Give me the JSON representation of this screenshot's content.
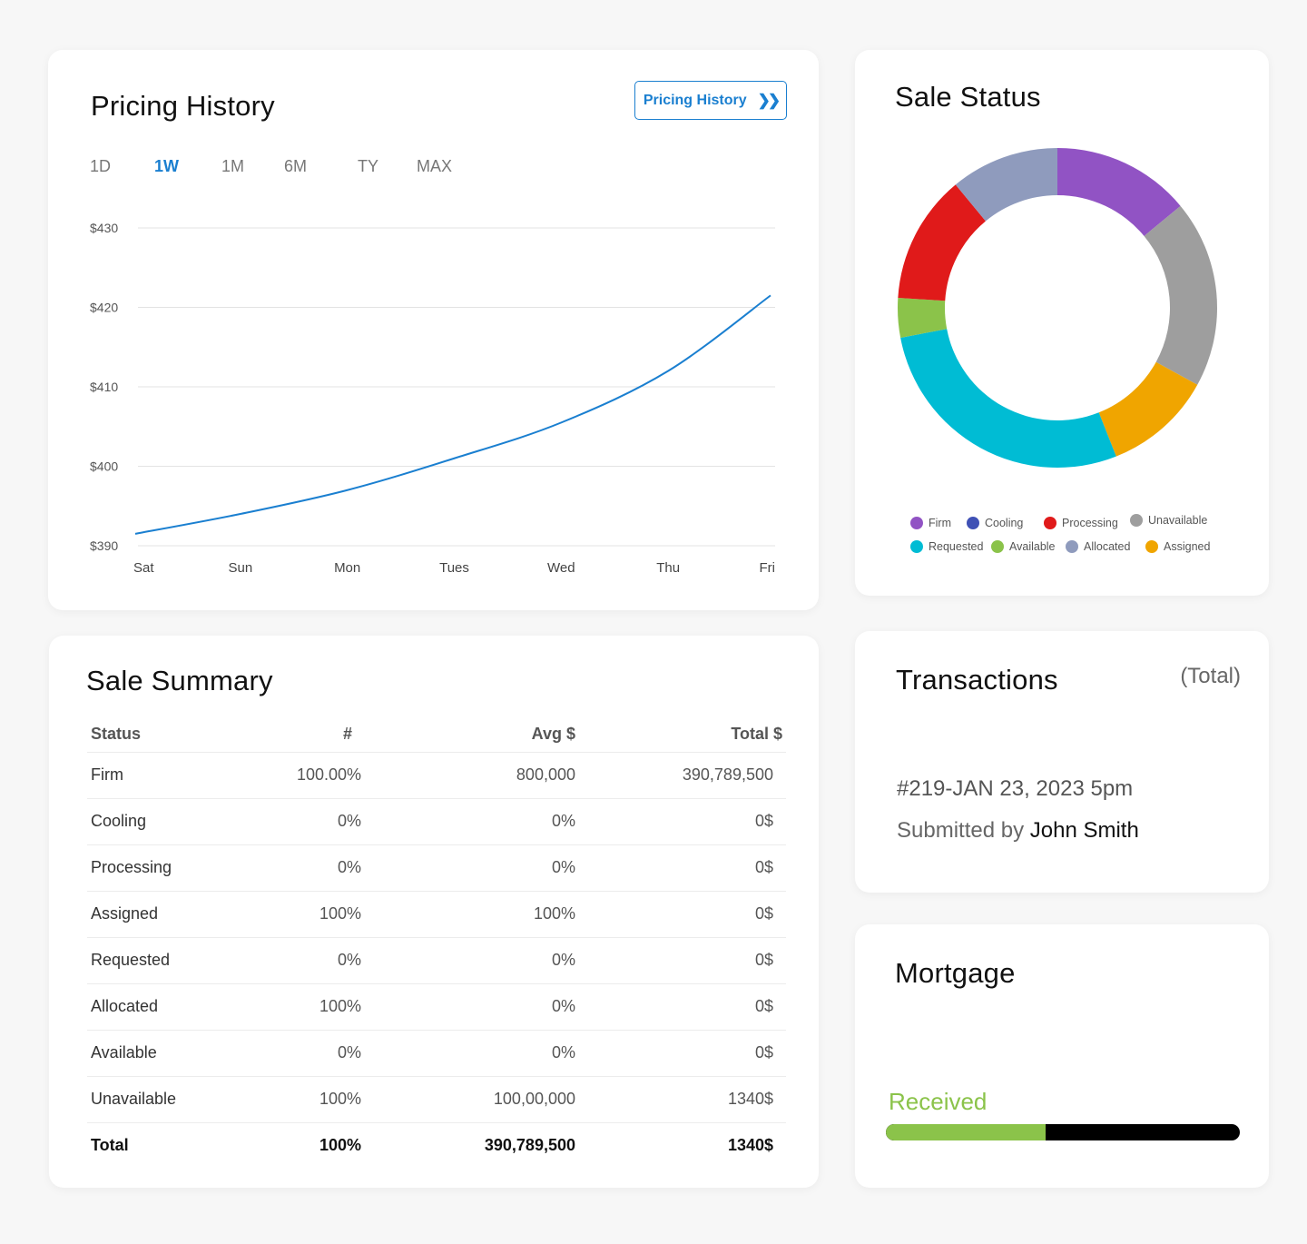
{
  "pricing": {
    "title": "Pricing History",
    "button_label": "Pricing History",
    "button_icon": "double-chevron-right-icon",
    "ranges": [
      "1D",
      "1W",
      "1M",
      "6M",
      "TY",
      "MAX"
    ],
    "active_range": "1W",
    "accent_color": "#1a7fd0"
  },
  "chart_data": [
    {
      "type": "line",
      "title": "",
      "x": [
        "Sat",
        "Sun",
        "Mon",
        "Tues",
        "Wed",
        "Thu",
        "Fri"
      ],
      "series": [
        {
          "values": [
            391.5,
            394,
            397,
            401,
            405.5,
            412,
            421.5
          ],
          "color": "#1a7fd0"
        }
      ],
      "y_ticks": [
        "$430",
        "$420",
        "$410",
        "$400",
        "$390"
      ],
      "ylim": [
        390,
        430
      ],
      "grid": true
    },
    {
      "type": "pie",
      "title": "Sale Status",
      "slices": [
        {
          "label": "Firm",
          "value": 14,
          "color": "#9153c4"
        },
        {
          "label": "Unavailable",
          "value": 19,
          "color": "#9e9e9e"
        },
        {
          "label": "Assigned",
          "value": 11,
          "color": "#f0a500"
        },
        {
          "label": "Requested",
          "value": 28,
          "color": "#00bcd4"
        },
        {
          "label": "Available",
          "value": 4,
          "color": "#8bc34a"
        },
        {
          "label": "Processing",
          "value": 13,
          "color": "#e01a1a"
        },
        {
          "label": "Allocated",
          "value": 11,
          "color": "#8f9bbd"
        }
      ],
      "legend": [
        {
          "label": "Firm",
          "color": "#9153c4"
        },
        {
          "label": "Cooling",
          "color": "#3f51b5"
        },
        {
          "label": "Processing",
          "color": "#e01a1a"
        },
        {
          "label": "Unavailable",
          "color": "#9e9e9e"
        },
        {
          "label": "Requested",
          "color": "#00bcd4"
        },
        {
          "label": "Available",
          "color": "#8bc34a"
        },
        {
          "label": "Allocated",
          "color": "#8f9bbd"
        },
        {
          "label": "Assigned",
          "color": "#f0a500"
        }
      ],
      "legend_placement": "bottom"
    }
  ],
  "status": {
    "title": "Sale Status"
  },
  "summary": {
    "title": "Sale Summary",
    "headers": {
      "status": "Status",
      "count": "#",
      "avg": "Avg $",
      "total": "Total $"
    },
    "rows": [
      {
        "status": "Firm",
        "count": "100.00%",
        "avg": "800,000",
        "total": "390,789,500"
      },
      {
        "status": "Cooling",
        "count": "0%",
        "avg": "0%",
        "total": "0$"
      },
      {
        "status": "Processing",
        "count": "0%",
        "avg": "0%",
        "total": "0$"
      },
      {
        "status": "Assigned",
        "count": "100%",
        "avg": "100%",
        "total": "0$"
      },
      {
        "status": "Requested",
        "count": "0%",
        "avg": "0%",
        "total": "0$"
      },
      {
        "status": "Allocated",
        "count": "100%",
        "avg": "0%",
        "total": "0$"
      },
      {
        "status": "Available",
        "count": "0%",
        "avg": "0%",
        "total": "0$"
      },
      {
        "status": "Unavailable",
        "count": "100%",
        "avg": "100,00,000",
        "total": "1340$"
      }
    ],
    "total_row": {
      "status": "Total",
      "count": "100%",
      "avg": "390,789,500",
      "total": "1340$"
    }
  },
  "transactions": {
    "title": "Transactions",
    "qualifier": "(Total)",
    "id_line": "#219-JAN 23, 2023 5pm",
    "submitted_prefix": "Submitted by ",
    "submitted_name": "John Smith"
  },
  "mortgage": {
    "title": "Mortgage",
    "status_label": "Received",
    "progress_fraction": 0.45,
    "progress_color": "#8bc34a"
  }
}
